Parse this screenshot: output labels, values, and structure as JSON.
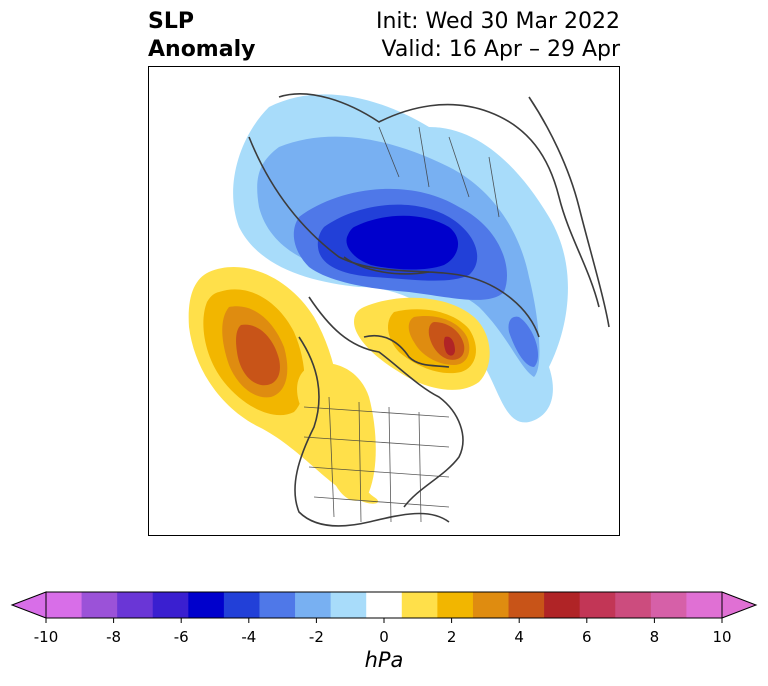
{
  "header": {
    "title_line1": "SLP",
    "title_line2": "Anomaly",
    "init": "Init: Wed 30 Mar 2022",
    "valid": "Valid: 16 Apr – 29 Apr"
  },
  "colorbar": {
    "unit": "hPa",
    "ticks": [
      "-10",
      "-8",
      "-6",
      "-4",
      "-2",
      "0",
      "2",
      "4",
      "6",
      "8",
      "10"
    ],
    "colors": [
      "#d86ee8",
      "#9b52d8",
      "#6a36d6",
      "#3a1fd0",
      "#0000cc",
      "#2240d8",
      "#4f78e8",
      "#78b0f2",
      "#a8dcfa",
      "#ffffff",
      "#ffe04a",
      "#f2b600",
      "#df8c10",
      "#c85418",
      "#b02426",
      "#c23656",
      "#cc4c7e",
      "#d660a8",
      "#e070d4"
    ]
  },
  "map": {
    "projection": "polar stereographic, North America / Arctic",
    "features": [
      "negative anomaly over Arctic",
      "positive anomaly over NE Pacific",
      "positive anomaly over Canadian Arctic"
    ]
  }
}
